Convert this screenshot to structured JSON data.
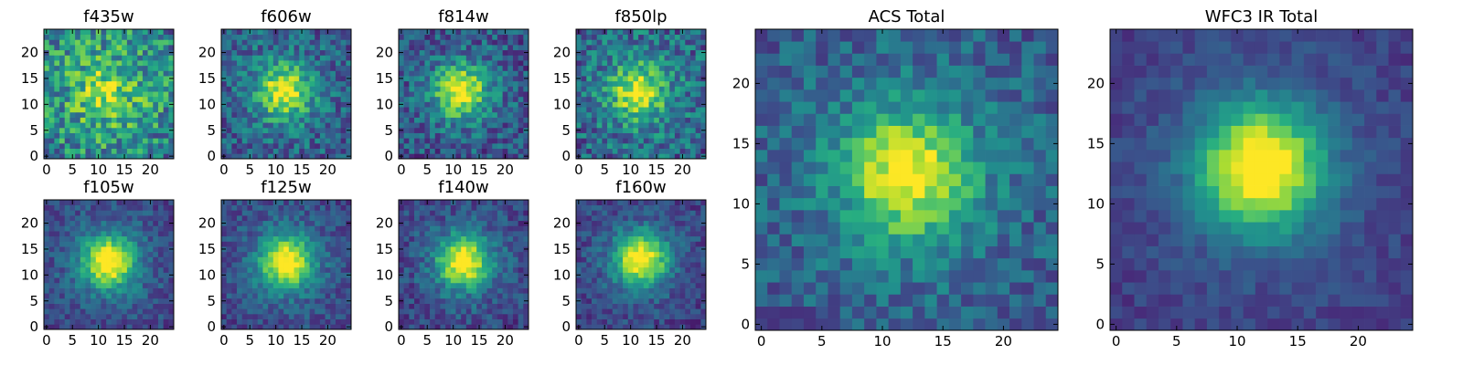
{
  "figure_title": "",
  "chart_data": [
    {
      "type": "heatmap",
      "title": "f435w",
      "colormap": "viridis",
      "grid_size": 25,
      "xlim": [
        -0.5,
        24.5
      ],
      "ylim": [
        -0.5,
        24.5
      ],
      "xticks": [
        0,
        5,
        10,
        15,
        20
      ],
      "yticks": [
        0,
        5,
        10,
        15,
        20
      ],
      "peak": {
        "x": 11.5,
        "y": 12.5
      },
      "contrast": 0.15,
      "noise": 0.55,
      "background": 0.7,
      "seed": 11
    },
    {
      "type": "heatmap",
      "title": "f606w",
      "colormap": "viridis",
      "grid_size": 25,
      "xlim": [
        -0.5,
        24.5
      ],
      "ylim": [
        -0.5,
        24.5
      ],
      "xticks": [
        0,
        5,
        10,
        15,
        20
      ],
      "yticks": [
        0,
        5,
        10,
        15,
        20
      ],
      "peak": {
        "x": 11.5,
        "y": 12.5
      },
      "contrast": 0.45,
      "noise": 0.4,
      "background": 0.45,
      "seed": 23
    },
    {
      "type": "heatmap",
      "title": "f814w",
      "colormap": "viridis",
      "grid_size": 25,
      "xlim": [
        -0.5,
        24.5
      ],
      "ylim": [
        -0.5,
        24.5
      ],
      "xticks": [
        0,
        5,
        10,
        15,
        20
      ],
      "yticks": [
        0,
        5,
        10,
        15,
        20
      ],
      "peak": {
        "x": 11.5,
        "y": 12.5
      },
      "contrast": 0.5,
      "noise": 0.4,
      "background": 0.4,
      "seed": 37
    },
    {
      "type": "heatmap",
      "title": "f850lp",
      "colormap": "viridis",
      "grid_size": 25,
      "xlim": [
        -0.5,
        24.5
      ],
      "ylim": [
        -0.5,
        24.5
      ],
      "xticks": [
        0,
        5,
        10,
        15,
        20
      ],
      "yticks": [
        0,
        5,
        10,
        15,
        20
      ],
      "peak": {
        "x": 11.5,
        "y": 12.5
      },
      "contrast": 0.4,
      "noise": 0.45,
      "background": 0.5,
      "seed": 41
    },
    {
      "type": "heatmap",
      "title": "f105w",
      "colormap": "viridis",
      "grid_size": 25,
      "xlim": [
        -0.5,
        24.5
      ],
      "ylim": [
        -0.5,
        24.5
      ],
      "xticks": [
        0,
        5,
        10,
        15,
        20
      ],
      "yticks": [
        0,
        5,
        10,
        15,
        20
      ],
      "peak": {
        "x": 12,
        "y": 12.5
      },
      "contrast": 0.6,
      "noise": 0.25,
      "background": 0.35,
      "seed": 53
    },
    {
      "type": "heatmap",
      "title": "f125w",
      "colormap": "viridis",
      "grid_size": 25,
      "xlim": [
        -0.5,
        24.5
      ],
      "ylim": [
        -0.5,
        24.5
      ],
      "xticks": [
        0,
        5,
        10,
        15,
        20
      ],
      "yticks": [
        0,
        5,
        10,
        15,
        20
      ],
      "peak": {
        "x": 12,
        "y": 12.5
      },
      "contrast": 0.6,
      "noise": 0.25,
      "background": 0.35,
      "seed": 67
    },
    {
      "type": "heatmap",
      "title": "f140w",
      "colormap": "viridis",
      "grid_size": 25,
      "xlim": [
        -0.5,
        24.5
      ],
      "ylim": [
        -0.5,
        24.5
      ],
      "xticks": [
        0,
        5,
        10,
        15,
        20
      ],
      "yticks": [
        0,
        5,
        10,
        15,
        20
      ],
      "peak": {
        "x": 12,
        "y": 12.5
      },
      "contrast": 0.6,
      "noise": 0.28,
      "background": 0.33,
      "seed": 79
    },
    {
      "type": "heatmap",
      "title": "f160w",
      "colormap": "viridis",
      "grid_size": 25,
      "xlim": [
        -0.5,
        24.5
      ],
      "ylim": [
        -0.5,
        24.5
      ],
      "xticks": [
        0,
        5,
        10,
        15,
        20
      ],
      "yticks": [
        0,
        5,
        10,
        15,
        20
      ],
      "peak": {
        "x": 12,
        "y": 13
      },
      "contrast": 0.62,
      "noise": 0.25,
      "background": 0.32,
      "seed": 83
    },
    {
      "type": "heatmap",
      "title": "ACS Total",
      "colormap": "viridis",
      "grid_size": 25,
      "xlim": [
        -0.5,
        24.5
      ],
      "ylim": [
        -0.5,
        24.5
      ],
      "xticks": [
        0,
        5,
        10,
        15,
        20
      ],
      "yticks": [
        0,
        5,
        10,
        15,
        20
      ],
      "peak": {
        "x": 12,
        "y": 12.5
      },
      "contrast": 0.48,
      "noise": 0.3,
      "background": 0.45,
      "seed": 97
    },
    {
      "type": "heatmap",
      "title": "WFC3 IR Total",
      "colormap": "viridis",
      "grid_size": 25,
      "xlim": [
        -0.5,
        24.5
      ],
      "ylim": [
        -0.5,
        24.5
      ],
      "xticks": [
        0,
        5,
        10,
        15,
        20
      ],
      "yticks": [
        0,
        5,
        10,
        15,
        20
      ],
      "peak": {
        "x": 12,
        "y": 13
      },
      "contrast": 0.68,
      "noise": 0.15,
      "background": 0.3,
      "seed": 101
    }
  ]
}
